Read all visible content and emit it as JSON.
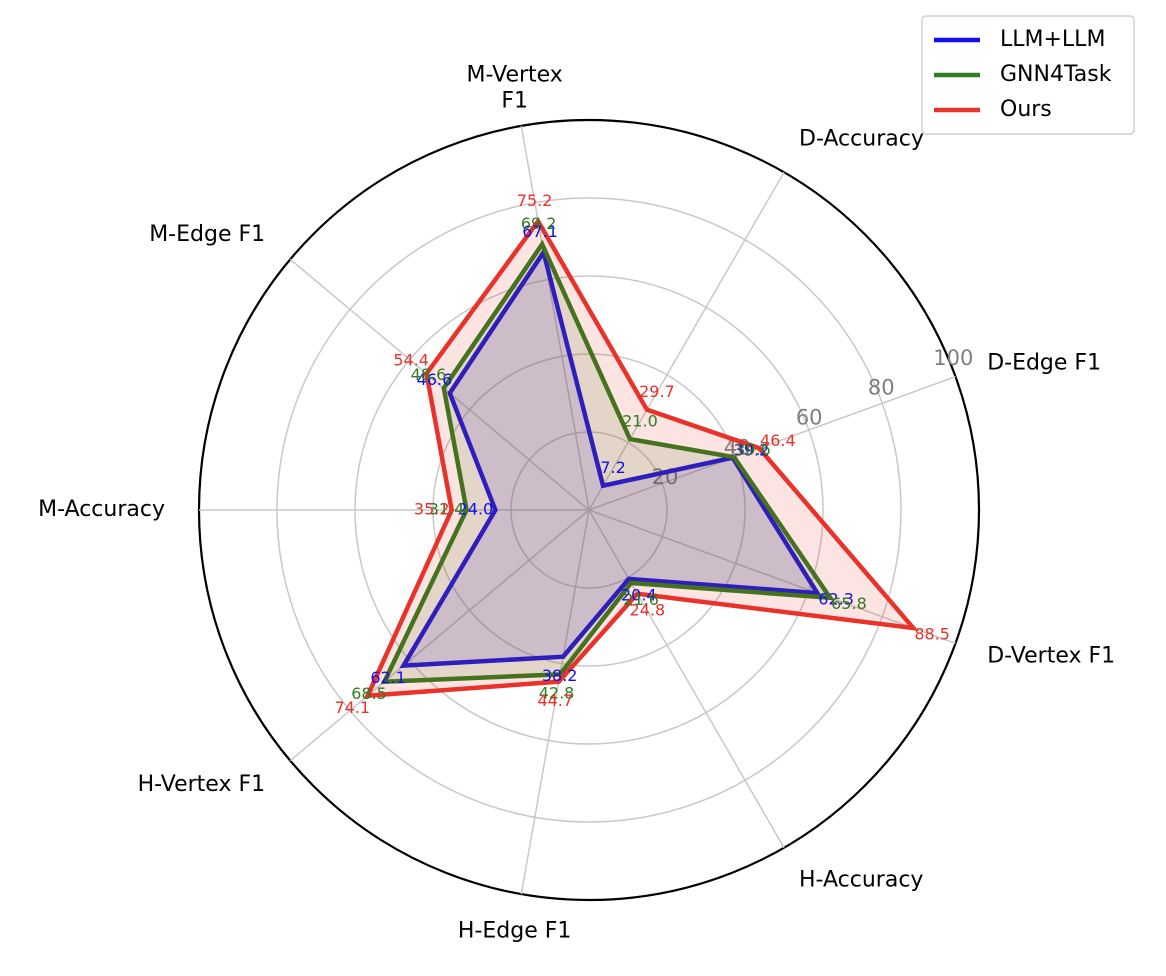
{
  "chart_data": {
    "type": "radar",
    "axes": [
      "D-Vertex F1",
      "D-Edge F1",
      "D-Accuracy",
      "M-Vertex F1",
      "M-Edge F1",
      "M-Accuracy",
      "H-Vertex F1",
      "H-Edge F1",
      "H-Accuracy"
    ],
    "axis_label_lines": [
      [
        "D-Vertex F1"
      ],
      [
        "D-Edge F1"
      ],
      [
        "D-Accuracy"
      ],
      [
        "M-Vertex",
        "F1"
      ],
      [
        "M-Edge F1"
      ],
      [
        "M-Accuracy"
      ],
      [
        "H-Vertex F1"
      ],
      [
        "H-Edge F1"
      ],
      [
        "H-Accuracy"
      ]
    ],
    "radial_range": [
      0,
      100
    ],
    "radial_ticks": [
      20,
      40,
      60,
      80,
      100
    ],
    "radial_tick_labels": [
      "20",
      "40",
      "60",
      "80",
      "100"
    ],
    "grid": true,
    "legend_position": "top-right",
    "series": [
      {
        "name": "LLM+LLM",
        "color": "#1010ee",
        "values": [
          62.3,
          39.2,
          7.2,
          67.1,
          46.6,
          24.0,
          62.1,
          38.2,
          20.4
        ],
        "labels": [
          "62.3",
          "39.2",
          "7.2",
          "67.1",
          "46.6",
          "24.0",
          "62.1",
          "38.2",
          "20.4"
        ]
      },
      {
        "name": "GNN4Task",
        "color": "#2e7d1e",
        "values": [
          65.8,
          39.6,
          21.0,
          69.2,
          48.6,
          31.4,
          68.5,
          42.8,
          21.6
        ],
        "labels": [
          "65.8",
          "39.6",
          "21.0",
          "69.2",
          "48.6",
          "31.4",
          "68.5",
          "42.8",
          "21.6"
        ]
      },
      {
        "name": "Ours",
        "color": "#e8322a",
        "values": [
          88.5,
          46.4,
          29.7,
          75.2,
          54.4,
          35.2,
          74.1,
          44.7,
          24.8
        ],
        "labels": [
          "88.5",
          "46.4",
          "29.7",
          "75.2",
          "54.4",
          "35.2",
          "74.1",
          "44.7",
          "24.8"
        ]
      }
    ]
  }
}
